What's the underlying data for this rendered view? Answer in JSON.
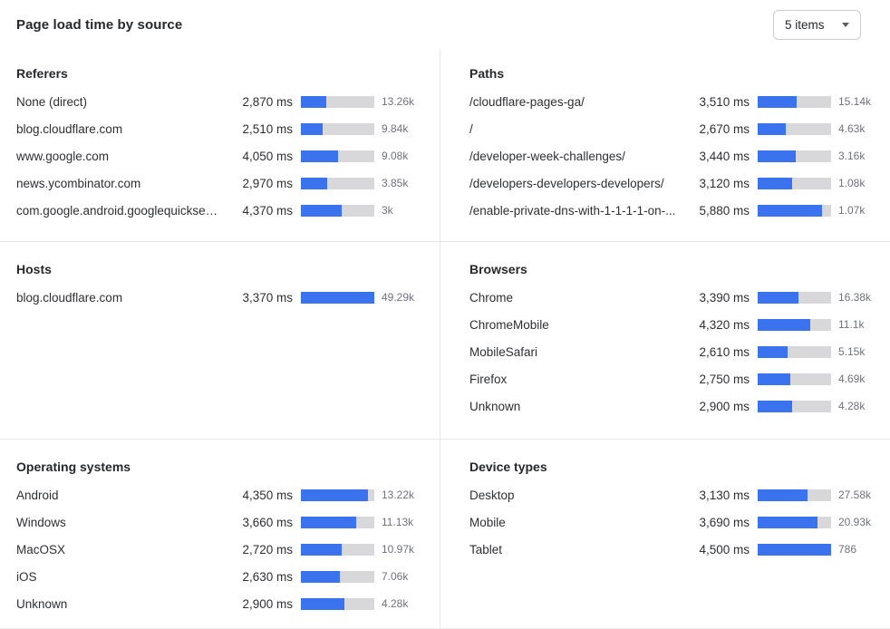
{
  "header": {
    "title": "Page load time by source",
    "items_dropdown": {
      "value": "5 items"
    }
  },
  "colors": {
    "bar_fill": "#3b73ee",
    "bar_track": "#d8d8da",
    "divider": "#e7e7ea",
    "text_primary": "#26282c",
    "text_secondary": "#6f727b"
  },
  "panels": [
    {
      "title": "Referers",
      "rows": [
        {
          "label": "None (direct)",
          "value_label": "2,870 ms",
          "count": "13.26k",
          "bar_pct": 35
        },
        {
          "label": "blog.cloudflare.com",
          "value_label": "2,510 ms",
          "count": "9.84k",
          "bar_pct": 30
        },
        {
          "label": "www.google.com",
          "value_label": "4,050 ms",
          "count": "9.08k",
          "bar_pct": 50
        },
        {
          "label": "news.ycombinator.com",
          "value_label": "2,970 ms",
          "count": "3.85k",
          "bar_pct": 36
        },
        {
          "label": "com.google.android.googlequicksearc...",
          "value_label": "4,370 ms",
          "count": "3k",
          "bar_pct": 55
        }
      ]
    },
    {
      "title": "Paths",
      "rows": [
        {
          "label": "/cloudflare-pages-ga/",
          "value_label": "3,510 ms",
          "count": "15.14k",
          "bar_pct": 53
        },
        {
          "label": "/",
          "value_label": "2,670 ms",
          "count": "4.63k",
          "bar_pct": 38
        },
        {
          "label": "/developer-week-challenges/",
          "value_label": "3,440 ms",
          "count": "3.16k",
          "bar_pct": 52
        },
        {
          "label": "/developers-developers-developers/",
          "value_label": "3,120 ms",
          "count": "1.08k",
          "bar_pct": 47
        },
        {
          "label": "/enable-private-dns-with-1-1-1-1-on-...",
          "value_label": "5,880 ms",
          "count": "1.07k",
          "bar_pct": 88
        }
      ]
    },
    {
      "title": "Hosts",
      "rows": [
        {
          "label": "blog.cloudflare.com",
          "value_label": "3,370 ms",
          "count": "49.29k",
          "bar_pct": 100
        }
      ]
    },
    {
      "title": "Browsers",
      "rows": [
        {
          "label": "Chrome",
          "value_label": "3,390 ms",
          "count": "16.38k",
          "bar_pct": 56
        },
        {
          "label": "ChromeMobile",
          "value_label": "4,320 ms",
          "count": "11.1k",
          "bar_pct": 71
        },
        {
          "label": "MobileSafari",
          "value_label": "2,610 ms",
          "count": "5.15k",
          "bar_pct": 41
        },
        {
          "label": "Firefox",
          "value_label": "2,750 ms",
          "count": "4.69k",
          "bar_pct": 44
        },
        {
          "label": "Unknown",
          "value_label": "2,900 ms",
          "count": "4.28k",
          "bar_pct": 47
        }
      ]
    },
    {
      "title": "Operating systems",
      "rows": [
        {
          "label": "Android",
          "value_label": "4,350 ms",
          "count": "13.22k",
          "bar_pct": 91
        },
        {
          "label": "Windows",
          "value_label": "3,660 ms",
          "count": "11.13k",
          "bar_pct": 75
        },
        {
          "label": "MacOSX",
          "value_label": "2,720 ms",
          "count": "10.97k",
          "bar_pct": 56
        },
        {
          "label": "iOS",
          "value_label": "2,630 ms",
          "count": "7.06k",
          "bar_pct": 53
        },
        {
          "label": "Unknown",
          "value_label": "2,900 ms",
          "count": "4.28k",
          "bar_pct": 59
        }
      ]
    },
    {
      "title": "Device types",
      "rows": [
        {
          "label": "Desktop",
          "value_label": "3,130 ms",
          "count": "27.58k",
          "bar_pct": 68
        },
        {
          "label": "Mobile",
          "value_label": "3,690 ms",
          "count": "20.93k",
          "bar_pct": 81
        },
        {
          "label": "Tablet",
          "value_label": "4,500 ms",
          "count": "786",
          "bar_pct": 100
        }
      ]
    }
  ],
  "chart_data": [
    {
      "type": "bar",
      "orientation": "horizontal",
      "title": "Referers",
      "unit": "ms",
      "categories": [
        "None (direct)",
        "blog.cloudflare.com",
        "www.google.com",
        "news.ycombinator.com",
        "com.google.android.googlequicksearc..."
      ],
      "values": [
        2870,
        2510,
        4050,
        2970,
        4370
      ],
      "count_labels": [
        "13.26k",
        "9.84k",
        "9.08k",
        "3.85k",
        "3k"
      ]
    },
    {
      "type": "bar",
      "orientation": "horizontal",
      "title": "Paths",
      "unit": "ms",
      "categories": [
        "/cloudflare-pages-ga/",
        "/",
        "/developer-week-challenges/",
        "/developers-developers-developers/",
        "/enable-private-dns-with-1-1-1-1-on-..."
      ],
      "values": [
        3510,
        2670,
        3440,
        3120,
        5880
      ],
      "count_labels": [
        "15.14k",
        "4.63k",
        "3.16k",
        "1.08k",
        "1.07k"
      ]
    },
    {
      "type": "bar",
      "orientation": "horizontal",
      "title": "Hosts",
      "unit": "ms",
      "categories": [
        "blog.cloudflare.com"
      ],
      "values": [
        3370
      ],
      "count_labels": [
        "49.29k"
      ]
    },
    {
      "type": "bar",
      "orientation": "horizontal",
      "title": "Browsers",
      "unit": "ms",
      "categories": [
        "Chrome",
        "ChromeMobile",
        "MobileSafari",
        "Firefox",
        "Unknown"
      ],
      "values": [
        3390,
        4320,
        2610,
        2750,
        2900
      ],
      "count_labels": [
        "16.38k",
        "11.1k",
        "5.15k",
        "4.69k",
        "4.28k"
      ]
    },
    {
      "type": "bar",
      "orientation": "horizontal",
      "title": "Operating systems",
      "unit": "ms",
      "categories": [
        "Android",
        "Windows",
        "MacOSX",
        "iOS",
        "Unknown"
      ],
      "values": [
        4350,
        3660,
        2720,
        2630,
        2900
      ],
      "count_labels": [
        "13.22k",
        "11.13k",
        "10.97k",
        "7.06k",
        "4.28k"
      ]
    },
    {
      "type": "bar",
      "orientation": "horizontal",
      "title": "Device types",
      "unit": "ms",
      "categories": [
        "Desktop",
        "Mobile",
        "Tablet"
      ],
      "values": [
        3130,
        3690,
        4500
      ],
      "count_labels": [
        "27.58k",
        "20.93k",
        "786"
      ]
    }
  ]
}
